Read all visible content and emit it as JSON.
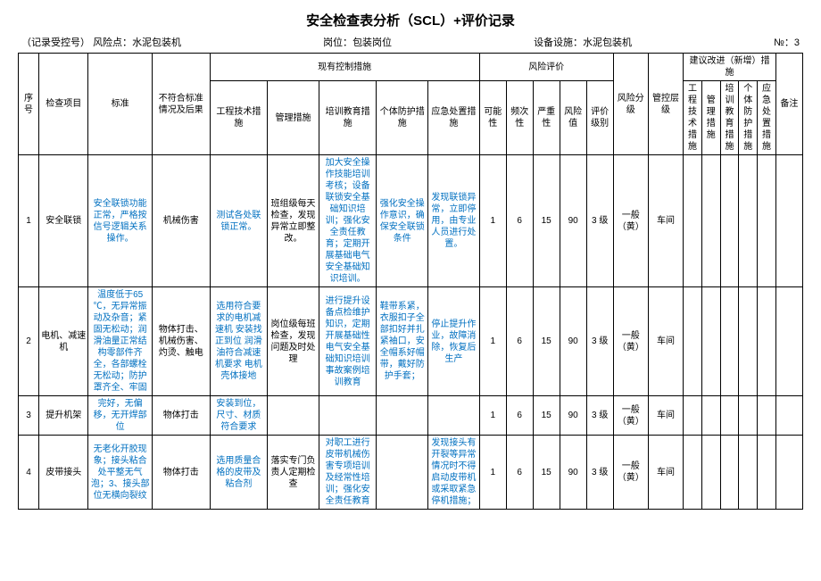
{
  "title": "安全检查表分析（SCL）+评价记录",
  "meta": {
    "record_no_label": "（记录受控号）",
    "risk_point_label": "风险点：",
    "risk_point": "水泥包装机",
    "post_label": "岗位：",
    "post": "包装岗位",
    "equip_label": "设备设施：",
    "equip": "水泥包装机",
    "no_label": "№：",
    "no_val": "3"
  },
  "headers": {
    "seq": "序号",
    "item": "检查项目",
    "std": "标准",
    "nonconform": "不符合标准情况及后果",
    "existing_group": "现有控制措施",
    "eng": "工程技术措施",
    "mgmt": "管理措施",
    "train": "培训教育措施",
    "ppe": "个体防护措施",
    "emerg": "应急处置措施",
    "risk_group": "风险评价",
    "L": "可能性",
    "E": "频次性",
    "C": "严重性",
    "D": "风险值",
    "level": "评价级别",
    "risk_class": "风险分级",
    "ctrl_level": "管控层级",
    "improve_group": "建议改进（新增）措施",
    "i_eng": "工程技术措施",
    "i_mgmt": "管理措施",
    "i_train": "培训教育措施",
    "i_ppe": "个体防护措施",
    "i_emerg": "应急处置措施",
    "remark": "备注"
  },
  "rows": [
    {
      "seq": "1",
      "item": "安全联锁",
      "std": "安全联锁功能正常，严格按信号逻辑关系操作。",
      "nonconform": "机械伤害",
      "eng": "测试各处联锁正常。",
      "mgmt": "班组级每天检查，发现异常立即整改。",
      "train": "加大安全操作技能培训考核；设备联锁安全基础知识培训；强化安全责任教育；定期开展基础电气安全基础知识培训。",
      "ppe": "强化安全操作意识，确保安全联锁条件",
      "emerg": "发现联锁异常，立即停用，由专业人员进行处置。",
      "L": "1",
      "E": "6",
      "C": "15",
      "D": "90",
      "level": "3 级",
      "risk_class": "一般（黄）",
      "ctrl_level": "车间"
    },
    {
      "seq": "2",
      "item": "电机、减速机",
      "std": "温度低于65 ℃，无异常振动及杂音；紧固无松动；润滑油量正常结构零部件齐全，各部螺栓无松动；防护罩齐全、牢固",
      "nonconform": "物体打击、机械伤害、灼烫、触电",
      "eng": "选用符合要求的电机减速机 安装找正到位 润滑油符合减速机要求 电机壳体接地",
      "mgmt": "岗位级每班检查，发现问题及时处理",
      "train": "进行提升设备点检维护知识，定期开展基础性电气安全基础知识培训事故案例培训教育",
      "ppe": "鞋带系紧，衣服扣子全部扣好并扎紧袖口，安全帽系好帽带，戴好防护手套；",
      "emerg": "停止提升作业，故障消除，恢复后生产",
      "L": "1",
      "E": "6",
      "C": "15",
      "D": "90",
      "level": "3 级",
      "risk_class": "一般（黄）",
      "ctrl_level": "车间"
    },
    {
      "seq": "3",
      "item": "提升机架",
      "std": "完好，无偏移，无开焊部位",
      "nonconform": "物体打击",
      "eng": "安装到位，尺寸、材质符合要求",
      "mgmt": "",
      "train": "",
      "ppe": "",
      "emerg": "",
      "L": "1",
      "E": "6",
      "C": "15",
      "D": "90",
      "level": "3 级",
      "risk_class": "一般（黄）",
      "ctrl_level": "车间"
    },
    {
      "seq": "4",
      "item": "皮带接头",
      "std": "无老化开胶现象；接头粘合处平整无气泡；3、接头部位无横向裂纹",
      "nonconform": "物体打击",
      "eng": "选用质量合格的皮带及粘合剂",
      "mgmt": "落实专门负责人定期检查",
      "train": "对职工进行皮带机械伤害专项培训及经常性培训；强化安全责任教育",
      "ppe": "",
      "emerg": "发现接头有开裂等异常情况时不得启动皮带机或采取紧急停机措施；",
      "L": "1",
      "E": "6",
      "C": "15",
      "D": "90",
      "level": "3 级",
      "risk_class": "一般（黄）",
      "ctrl_level": "车间"
    }
  ]
}
